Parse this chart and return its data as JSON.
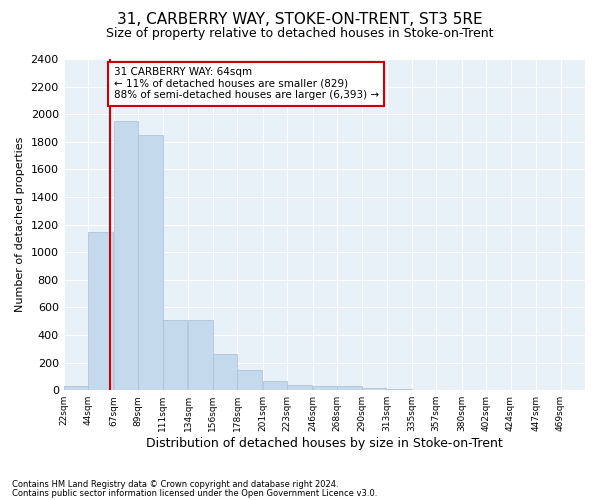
{
  "title": "31, CARBERRY WAY, STOKE-ON-TRENT, ST3 5RE",
  "subtitle": "Size of property relative to detached houses in Stoke-on-Trent",
  "xlabel": "Distribution of detached houses by size in Stoke-on-Trent",
  "ylabel": "Number of detached properties",
  "bar_values": [
    30,
    1150,
    1950,
    1850,
    510,
    510,
    265,
    150,
    65,
    40,
    30,
    30,
    15,
    10,
    5,
    5,
    5,
    5,
    5
  ],
  "bin_edges": [
    22,
    44,
    67,
    89,
    111,
    134,
    156,
    178,
    201,
    223,
    246,
    268,
    290,
    313,
    335,
    357,
    380,
    402,
    424,
    447
  ],
  "tick_labels": [
    "22sqm",
    "44sqm",
    "67sqm",
    "89sqm",
    "111sqm",
    "134sqm",
    "156sqm",
    "178sqm",
    "201sqm",
    "223sqm",
    "246sqm",
    "268sqm",
    "290sqm",
    "313sqm",
    "335sqm",
    "357sqm",
    "380sqm",
    "402sqm",
    "424sqm",
    "447sqm",
    "469sqm"
  ],
  "bar_color": "#c5d9ed",
  "bar_edge_color": "#aabdd4",
  "property_line_x": 64,
  "property_line_color": "#cc0000",
  "annotation_text": "31 CARBERRY WAY: 64sqm\n← 11% of detached houses are smaller (829)\n88% of semi-detached houses are larger (6,393) →",
  "annotation_box_color": "#ffffff",
  "annotation_box_edge_color": "#cc0000",
  "ylim": [
    0,
    2400
  ],
  "yticks": [
    0,
    200,
    400,
    600,
    800,
    1000,
    1200,
    1400,
    1600,
    1800,
    2000,
    2200,
    2400
  ],
  "bg_color": "#e8f0f8",
  "grid_color": "#ffffff",
  "footer_line1": "Contains HM Land Registry data © Crown copyright and database right 2024.",
  "footer_line2": "Contains public sector information licensed under the Open Government Licence v3.0.",
  "title_fontsize": 11,
  "subtitle_fontsize": 9,
  "xlabel_fontsize": 9,
  "ylabel_fontsize": 8
}
